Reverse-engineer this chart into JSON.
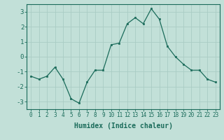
{
  "x": [
    0,
    1,
    2,
    3,
    4,
    5,
    6,
    7,
    8,
    9,
    10,
    11,
    12,
    13,
    14,
    15,
    16,
    17,
    18,
    19,
    20,
    21,
    22,
    23
  ],
  "y": [
    -1.3,
    -1.5,
    -1.3,
    -0.7,
    -1.5,
    -2.8,
    -3.1,
    -1.7,
    -0.9,
    -0.9,
    0.8,
    0.9,
    2.2,
    2.6,
    2.2,
    3.2,
    2.5,
    0.7,
    0.0,
    -0.5,
    -0.9,
    -0.9,
    -1.5,
    -1.7
  ],
  "xlabel": "Humidex (Indice chaleur)",
  "ylim": [
    -3.5,
    3.5
  ],
  "xlim": [
    -0.5,
    23.5
  ],
  "yticks": [
    -3,
    -2,
    -1,
    0,
    1,
    2,
    3
  ],
  "xticks": [
    0,
    1,
    2,
    3,
    4,
    5,
    6,
    7,
    8,
    9,
    10,
    11,
    12,
    13,
    14,
    15,
    16,
    17,
    18,
    19,
    20,
    21,
    22,
    23
  ],
  "line_color": "#1a6b5a",
  "marker_color": "#1a6b5a",
  "bg_color": "#c2e0d8",
  "grid_color": "#aaccc4",
  "axis_color": "#1a6b5a",
  "xlabel_fontsize": 7,
  "tick_fontsize": 5.5,
  "ytick_fontsize": 6.5,
  "figure_width": 3.2,
  "figure_height": 2.0,
  "dpi": 100
}
